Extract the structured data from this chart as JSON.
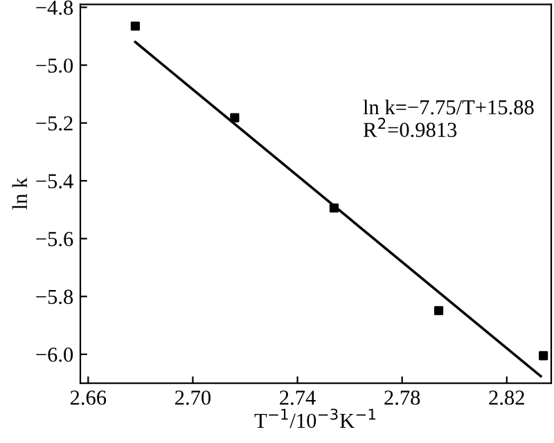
{
  "chart_data": {
    "type": "scatter",
    "xlabel": "T$^{−1}$/10$^{−3}$K$^{−1}$",
    "ylabel": "ln k",
    "x": [
      2.678,
      2.716,
      2.754,
      2.794,
      2.834
    ],
    "series": [
      {
        "color": "#000000",
        "marker": "square",
        "values": [
          -4.865,
          -5.182,
          -5.494,
          -5.849,
          -6.005
        ]
      },
      {
        "type": "line",
        "color": "#000000",
        "marker": "none",
        "line_style": "solid",
        "x": [
          2.678,
          2.833
        ],
        "values": [
          -4.92,
          -6.076
        ]
      }
    ],
    "annotations": [
      "ln k=−7.75/T+15.88",
      "R$^{2}$=0.9813"
    ],
    "xlim": [
      2.657,
      2.837
    ],
    "ylim": [
      -6.1,
      -4.79
    ],
    "xticks": [
      2.66,
      {
        "value": 2.7,
        "label": "2.70"
      },
      2.74,
      2.78,
      2.82
    ],
    "yticks": [
      {
        "value": -6.0,
        "label": "−6.0"
      },
      {
        "value": -5.8,
        "label": "−5.8"
      },
      {
        "value": -5.6,
        "label": "−5.6"
      },
      {
        "value": -5.4,
        "label": "−5.4"
      },
      {
        "value": -5.2,
        "label": "−5.2"
      },
      {
        "value": -5.0,
        "label": "−5.0"
      },
      {
        "value": -4.8,
        "label": "−4.8"
      }
    ],
    "grid": false,
    "legend": false
  }
}
